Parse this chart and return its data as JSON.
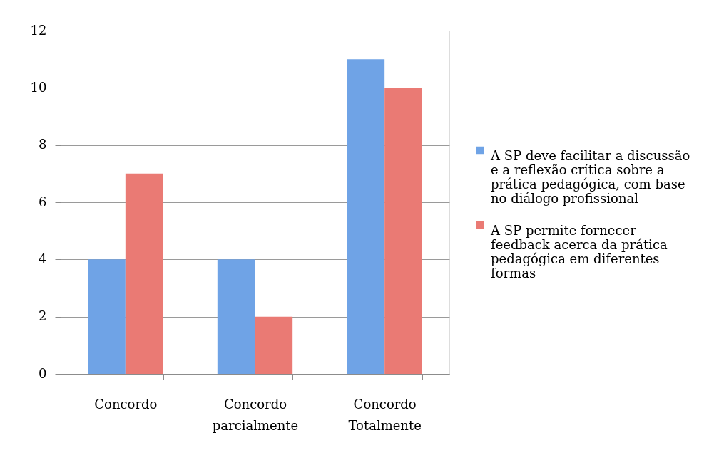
{
  "chart_data": {
    "type": "bar",
    "categories": [
      "Concordo",
      "Concordo parcialmente",
      "Concordo Totalmente"
    ],
    "series": [
      {
        "name": "A SP deve facilitar a discussão e a reflexão crítica sobre a prática pedagógica, com base no diálogo profissional",
        "color": "#6fa3e6",
        "values": [
          4,
          4,
          11
        ]
      },
      {
        "name": "A SP permite fornecer feedback acerca da prática pedagógica em diferentes formas",
        "color": "#ea7a74",
        "values": [
          7,
          2,
          10
        ]
      }
    ],
    "ylim": [
      0,
      12
    ],
    "yticks": [
      0,
      2,
      4,
      6,
      8,
      10,
      12
    ],
    "grid": "y",
    "legend": "right"
  }
}
